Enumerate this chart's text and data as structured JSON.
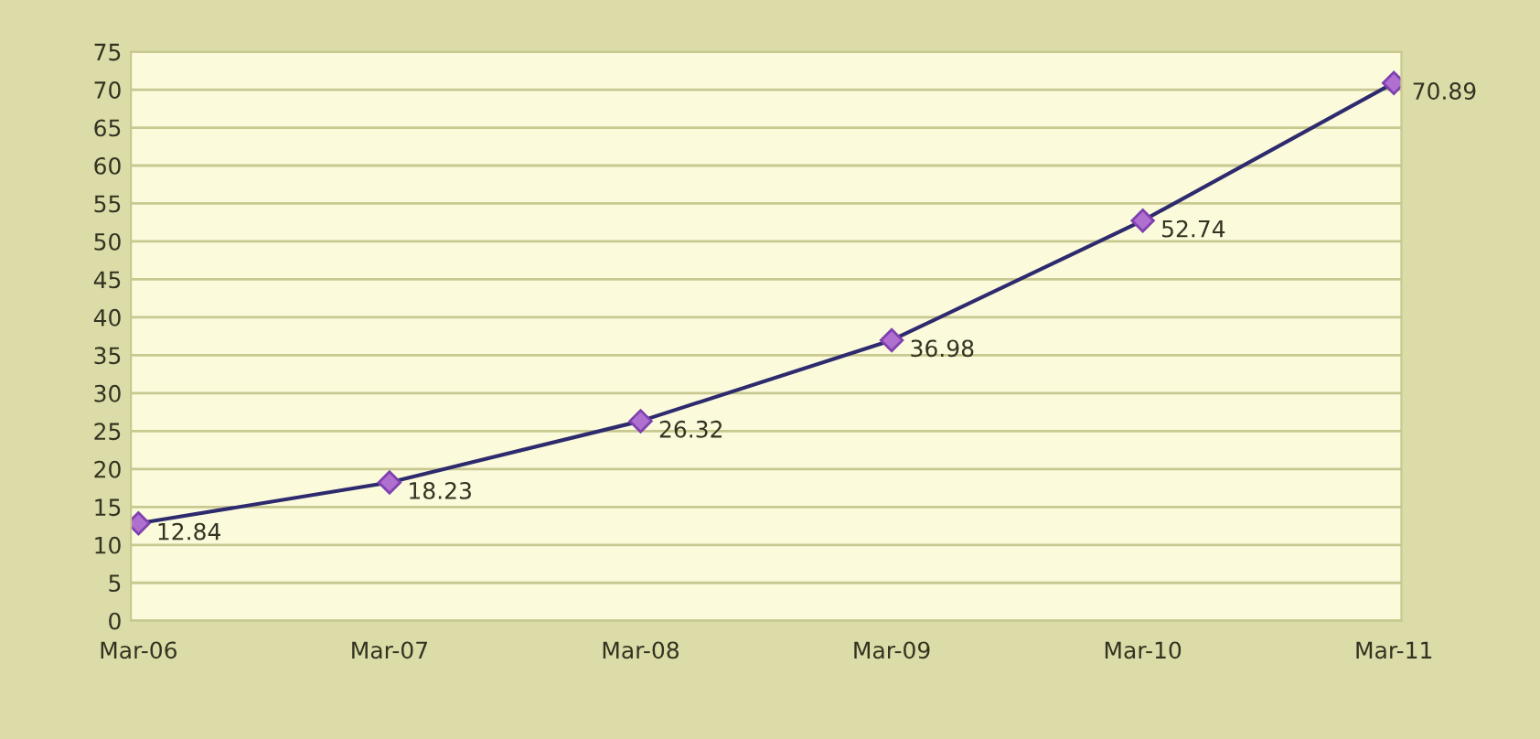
{
  "chart_data": {
    "type": "line",
    "categories": [
      "Mar-06",
      "Mar-07",
      "Mar-08",
      "Mar-09",
      "Mar-10",
      "Mar-11"
    ],
    "series": [
      {
        "color": "#2e2a6e",
        "values": [
          12.84,
          18.23,
          26.32,
          36.98,
          52.74,
          70.89
        ]
      }
    ],
    "ylim": [
      0,
      75
    ],
    "yticks": [
      0,
      5,
      10,
      15,
      20,
      25,
      30,
      35,
      40,
      45,
      50,
      55,
      60,
      65,
      70,
      75
    ],
    "grid": "y",
    "marker": "diamond",
    "line_style": "solid",
    "data_labels": true
  }
}
